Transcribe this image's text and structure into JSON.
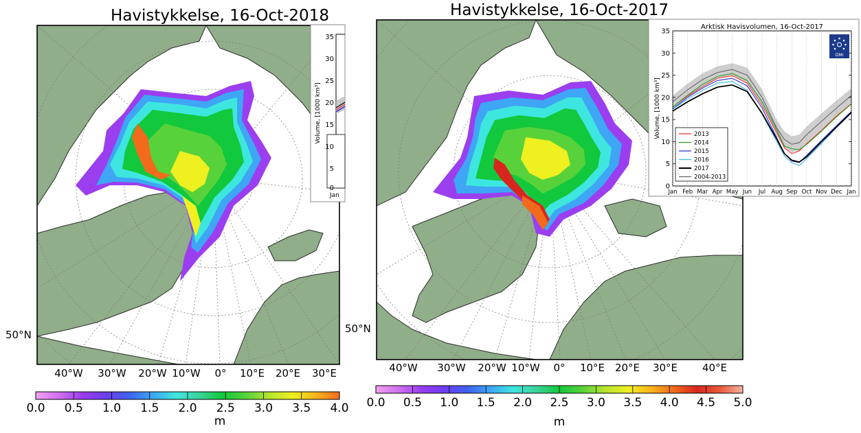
{
  "colorbar_gradient": [
    "#f2a0f2",
    "#d070ee",
    "#9a3cf0",
    "#6b3df0",
    "#3f62f0",
    "#3ea6f5",
    "#3ee6e0",
    "#3bd39a",
    "#12c83c",
    "#58d23a",
    "#b6e52e",
    "#eef020",
    "#f6b41c",
    "#f26a1c",
    "#d8261e",
    "#e85a3a",
    "#f6b2a0"
  ],
  "colors": {
    "land": "#8fae89",
    "ocean": "#ffffff",
    "grid": "#7d7d7d"
  },
  "left": {
    "title": "Havistykkelse, 16-Oct-2018",
    "lat_label": "50°N",
    "lon_labels": [
      "40°W",
      "30°W",
      "20°W",
      "10°W",
      "0°",
      "10°E",
      "20°E",
      "30°E"
    ],
    "colorbar_ticks": [
      "0.0",
      "0.5",
      "1.0",
      "1.5",
      "2.0",
      "2.5",
      "3.0",
      "3.5",
      "4.0"
    ],
    "colorbar_unit": "m",
    "inset_ticks": [
      "35",
      "30",
      "25",
      "20",
      "15",
      "10",
      "5",
      "0"
    ],
    "inset_ylabel": "Volume, [1000 km³]",
    "inset_first_month": "Jan"
  },
  "right": {
    "title": "Havistykkelse, 16-Oct-2017",
    "lat_label": "50°N",
    "lon_labels": [
      "40°W",
      "30°W",
      "20°W",
      "10°W",
      "0°",
      "10°E",
      "20°E",
      "30°E",
      "40°E"
    ],
    "colorbar_ticks": [
      "0.0",
      "0.5",
      "1.0",
      "1.5",
      "2.0",
      "2.5",
      "3.0",
      "3.5",
      "4.0",
      "4.5",
      "5.0"
    ],
    "colorbar_unit": "m"
  },
  "chart_data": [
    {
      "type": "heatmap",
      "title": "Havistykkelse, 16-Oct-2018",
      "variable": "sea ice thickness",
      "colorbar_label": "m",
      "colorbar_range": [
        0.0,
        4.0
      ],
      "colorbar_ticks": [
        0.0,
        0.5,
        1.0,
        1.5,
        2.0,
        2.5,
        3.0,
        3.5,
        4.0
      ],
      "xlabel": "",
      "ylabel": ""
    },
    {
      "type": "heatmap",
      "title": "Havistykkelse, 16-Oct-2017",
      "variable": "sea ice thickness",
      "colorbar_label": "m",
      "colorbar_range": [
        0.0,
        5.0
      ],
      "colorbar_ticks": [
        0.0,
        0.5,
        1.0,
        1.5,
        2.0,
        2.5,
        3.0,
        3.5,
        4.0,
        4.5,
        5.0
      ],
      "xlabel": "",
      "ylabel": ""
    },
    {
      "type": "line",
      "title": "Arktisk Havisvolumen, 16-Oct-2017",
      "logo_label": "DMI",
      "ylabel": "Volume, [1000 km³]",
      "xlabel": "",
      "ylim": [
        0,
        35
      ],
      "yticks": [
        0,
        5,
        10,
        15,
        20,
        25,
        30,
        35
      ],
      "xlim": [
        0,
        12
      ],
      "x_tick_labels": [
        "Jan",
        "Feb",
        "Mar",
        "Apr",
        "May",
        "Jun",
        "Jul",
        "Aug",
        "Sep",
        "Oct",
        "Nov",
        "Dec",
        "Jan"
      ],
      "x": [
        0,
        1,
        2,
        3,
        4,
        5,
        6,
        7,
        7.5,
        8,
        8.5,
        9,
        10,
        11,
        12
      ],
      "mean_band": {
        "name": "2004-2013",
        "mean": [
          19.0,
          21.7,
          24.0,
          25.6,
          26.3,
          25.0,
          20.0,
          13.0,
          10.5,
          9.4,
          9.8,
          11.6,
          14.6,
          17.6,
          20.4
        ],
        "lower": [
          17.6,
          20.3,
          22.6,
          24.2,
          24.9,
          23.3,
          18.2,
          11.2,
          8.7,
          7.6,
          8.0,
          9.8,
          12.8,
          15.9,
          18.8
        ],
        "upper": [
          20.4,
          23.1,
          25.4,
          27.0,
          27.7,
          26.7,
          21.8,
          14.8,
          12.3,
          11.2,
          11.6,
          13.4,
          16.4,
          19.3,
          22.0
        ]
      },
      "series": [
        {
          "name": "2013",
          "color": "#ff2d2d",
          "values": [
            17.8,
            20.3,
            22.4,
            24.3,
            24.9,
            23.2,
            18.2,
            12.0,
            8.6,
            7.3,
            7.9,
            9.6,
            12.6,
            15.8,
            18.6
          ]
        },
        {
          "name": "2014",
          "color": "#1f9e1f",
          "values": [
            17.8,
            20.5,
            22.9,
            24.7,
            25.4,
            23.8,
            19.0,
            12.6,
            9.0,
            8.4,
            8.2,
            9.4,
            12.4,
            15.6,
            18.5
          ]
        },
        {
          "name": "2015",
          "color": "#2b2bd4",
          "values": [
            17.4,
            20.0,
            22.1,
            23.8,
            24.3,
            22.6,
            17.6,
            10.8,
            7.4,
            5.6,
            5.3,
            6.9,
            10.3,
            13.6,
            16.8
          ]
        },
        {
          "name": "2016",
          "color": "#38b9e0",
          "values": [
            17.3,
            19.6,
            21.6,
            23.2,
            23.6,
            21.6,
            16.2,
            10.0,
            6.8,
            5.2,
            4.6,
            6.2,
            9.6,
            13.2,
            16.5
          ]
        },
        {
          "name": "2017",
          "color": "#000000",
          "values": [
            16.9,
            19.0,
            20.8,
            22.3,
            22.8,
            21.3,
            16.4,
            10.5,
            7.3,
            5.8,
            5.4,
            6.6,
            10.0,
            13.3,
            16.6
          ]
        },
        {
          "name": "2004-2013",
          "color": "#666666",
          "values": [
            19.0,
            21.7,
            24.0,
            25.6,
            26.3,
            25.0,
            20.0,
            13.0,
            10.5,
            9.4,
            9.8,
            11.6,
            14.6,
            17.6,
            20.4
          ]
        }
      ]
    }
  ]
}
